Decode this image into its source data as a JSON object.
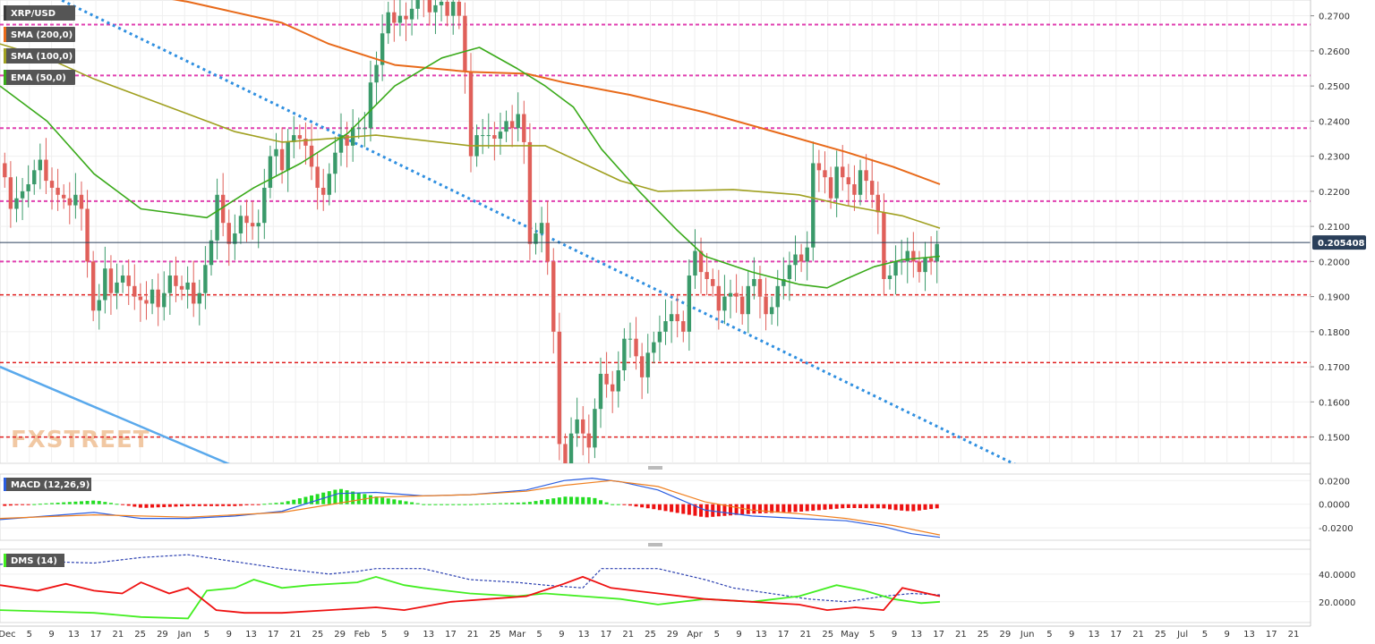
{
  "chart_data": [
    {
      "type": "candlestick",
      "title": "XRP/USD",
      "indicators": [
        {
          "name": "SMA (200,0)",
          "color": "#e86a1a"
        },
        {
          "name": "SMA (100,0)",
          "color": "#a0a020"
        },
        {
          "name": "EMA (50,0)",
          "color": "#3aaa1a"
        }
      ],
      "last_price_label": "0.205408",
      "ylim": [
        0.1425,
        0.2745
      ],
      "yticks": [
        "0.2700",
        "0.2600",
        "0.2500",
        "0.2400",
        "0.2300",
        "0.2200",
        "0.2100",
        "0.2000",
        "0.1900",
        "0.1800",
        "0.1700",
        "0.1600",
        "0.1500"
      ],
      "pink_levels": [
        0.2675,
        0.253,
        0.238,
        0.2172,
        0.2
      ],
      "red_levels": [
        0.1905,
        0.1712,
        0.15
      ],
      "watermark": "FXSTREET",
      "close_series": [
        0.224,
        0.215,
        0.218,
        0.22,
        0.222,
        0.226,
        0.229,
        0.223,
        0.221,
        0.219,
        0.218,
        0.216,
        0.219,
        0.215,
        0.2,
        0.186,
        0.189,
        0.198,
        0.191,
        0.194,
        0.196,
        0.193,
        0.19,
        0.189,
        0.188,
        0.192,
        0.187,
        0.191,
        0.196,
        0.193,
        0.192,
        0.194,
        0.188,
        0.191,
        0.199,
        0.206,
        0.219,
        0.211,
        0.205,
        0.208,
        0.213,
        0.211,
        0.21,
        0.211,
        0.221,
        0.23,
        0.232,
        0.226,
        0.234,
        0.236,
        0.235,
        0.233,
        0.227,
        0.221,
        0.219,
        0.225,
        0.231,
        0.236,
        0.233,
        0.238,
        0.238,
        0.238,
        0.251,
        0.256,
        0.265,
        0.271,
        0.268,
        0.27,
        0.269,
        0.272,
        0.276,
        0.275,
        0.271,
        0.273,
        0.274,
        0.27,
        0.274,
        0.27,
        0.254,
        0.23,
        0.236,
        0.236,
        0.236,
        0.235,
        0.237,
        0.24,
        0.238,
        0.242,
        0.234,
        0.205,
        0.208,
        0.211,
        0.2,
        0.18,
        0.148,
        0.14,
        0.151,
        0.155,
        0.151,
        0.147,
        0.158,
        0.168,
        0.165,
        0.163,
        0.169,
        0.178,
        0.178,
        0.173,
        0.167,
        0.174,
        0.177,
        0.18,
        0.183,
        0.185,
        0.183,
        0.18,
        0.196,
        0.203,
        0.197,
        0.195,
        0.193,
        0.186,
        0.19,
        0.191,
        0.19,
        0.185,
        0.193,
        0.195,
        0.19,
        0.185,
        0.187,
        0.193,
        0.195,
        0.199,
        0.202,
        0.2,
        0.204,
        0.228,
        0.226,
        0.224,
        0.218,
        0.227,
        0.224,
        0.222,
        0.219,
        0.226,
        0.223,
        0.219,
        0.214,
        0.195,
        0.196,
        0.2,
        0.2,
        0.203,
        0.2,
        0.197,
        0.201,
        0.2,
        0.205
      ],
      "sma200": [
        [
          0.1,
          0.2785
        ],
        [
          0.2,
          0.274
        ],
        [
          0.3,
          0.268
        ],
        [
          0.35,
          0.262
        ],
        [
          0.42,
          0.256
        ],
        [
          0.5,
          0.254
        ],
        [
          0.56,
          0.2535
        ],
        [
          0.6,
          0.251
        ],
        [
          0.67,
          0.2475
        ],
        [
          0.75,
          0.2425
        ],
        [
          0.83,
          0.2365
        ],
        [
          0.9,
          0.2312
        ],
        [
          0.95,
          0.227
        ],
        [
          1.0,
          0.222
        ]
      ],
      "sma100": [
        [
          0.0,
          0.262
        ],
        [
          0.05,
          0.258
        ],
        [
          0.1,
          0.252
        ],
        [
          0.15,
          0.247
        ],
        [
          0.2,
          0.242
        ],
        [
          0.25,
          0.237
        ],
        [
          0.3,
          0.234
        ],
        [
          0.4,
          0.236
        ],
        [
          0.5,
          0.233
        ],
        [
          0.58,
          0.233
        ],
        [
          0.62,
          0.228
        ],
        [
          0.66,
          0.223
        ],
        [
          0.7,
          0.22
        ],
        [
          0.78,
          0.2205
        ],
        [
          0.85,
          0.219
        ],
        [
          0.9,
          0.216
        ],
        [
          0.96,
          0.213
        ],
        [
          1.0,
          0.2095
        ]
      ],
      "ema50": [
        [
          0.0,
          0.25
        ],
        [
          0.05,
          0.24
        ],
        [
          0.1,
          0.225
        ],
        [
          0.15,
          0.215
        ],
        [
          0.22,
          0.2125
        ],
        [
          0.27,
          0.221
        ],
        [
          0.32,
          0.228
        ],
        [
          0.37,
          0.2365
        ],
        [
          0.42,
          0.25
        ],
        [
          0.47,
          0.258
        ],
        [
          0.51,
          0.261
        ],
        [
          0.55,
          0.255
        ],
        [
          0.58,
          0.25
        ],
        [
          0.61,
          0.244
        ],
        [
          0.64,
          0.232
        ],
        [
          0.68,
          0.22
        ],
        [
          0.72,
          0.209
        ],
        [
          0.75,
          0.2015
        ],
        [
          0.8,
          0.197
        ],
        [
          0.85,
          0.1935
        ],
        [
          0.88,
          0.1925
        ],
        [
          0.9,
          0.195
        ],
        [
          0.93,
          0.1985
        ],
        [
          0.96,
          0.2005
        ],
        [
          1.0,
          0.2015
        ]
      ],
      "trend_dotted": [
        [
          0.0,
          0.283
        ],
        [
          1.0,
          0.134
        ]
      ],
      "trend_solid": [
        [
          0.0,
          0.17
        ],
        [
          1.0,
          0.118
        ]
      ],
      "xlabels": [
        "Dec",
        "5",
        "9",
        "13",
        "17",
        "21",
        "25",
        "29",
        "Jan",
        "5",
        "9",
        "13",
        "17",
        "21",
        "25",
        "29",
        "Feb",
        "5",
        "9",
        "13",
        "17",
        "21",
        "25",
        "Mar",
        "5",
        "9",
        "13",
        "17",
        "21",
        "25",
        "29",
        "Apr",
        "5",
        "9",
        "13",
        "17",
        "21",
        "25",
        "May",
        "5",
        "9",
        "13",
        "17",
        "21",
        "25",
        "29",
        "Jun",
        "5",
        "9",
        "13",
        "17",
        "21",
        "25",
        "Jul",
        "5",
        "9",
        "13",
        "17",
        "21"
      ]
    },
    {
      "type": "macd",
      "label": "MACD (12,26,9)",
      "yticks": [
        "0.0200",
        "0.0000",
        "-0.0200"
      ],
      "ylim": [
        -0.0305,
        0.0255
      ],
      "macd": [
        [
          0.0,
          -0.013
        ],
        [
          0.05,
          -0.01
        ],
        [
          0.1,
          -0.007
        ],
        [
          0.15,
          -0.012
        ],
        [
          0.2,
          -0.012
        ],
        [
          0.25,
          -0.01
        ],
        [
          0.3,
          -0.006
        ],
        [
          0.36,
          0.009
        ],
        [
          0.4,
          0.01
        ],
        [
          0.45,
          0.007
        ],
        [
          0.5,
          0.008
        ],
        [
          0.56,
          0.012
        ],
        [
          0.6,
          0.02
        ],
        [
          0.63,
          0.022
        ],
        [
          0.66,
          0.019
        ],
        [
          0.7,
          0.012
        ],
        [
          0.75,
          -0.005
        ],
        [
          0.8,
          -0.01
        ],
        [
          0.85,
          -0.012
        ],
        [
          0.9,
          -0.014
        ],
        [
          0.94,
          -0.019
        ],
        [
          0.97,
          -0.025
        ],
        [
          1.0,
          -0.028
        ]
      ],
      "signal": [
        [
          0.0,
          -0.012
        ],
        [
          0.1,
          -0.009
        ],
        [
          0.2,
          -0.011
        ],
        [
          0.3,
          -0.007
        ],
        [
          0.4,
          0.006
        ],
        [
          0.5,
          0.008
        ],
        [
          0.56,
          0.011
        ],
        [
          0.6,
          0.016
        ],
        [
          0.65,
          0.02
        ],
        [
          0.7,
          0.015
        ],
        [
          0.75,
          0.002
        ],
        [
          0.8,
          -0.005
        ],
        [
          0.85,
          -0.008
        ],
        [
          0.9,
          -0.012
        ],
        [
          0.95,
          -0.018
        ],
        [
          1.0,
          -0.026
        ]
      ],
      "hist_note": "green above zero, red below"
    },
    {
      "type": "dms",
      "label": "DMS (14)",
      "yticks": [
        "40.0000",
        "20.0000"
      ],
      "ylim": [
        5,
        58
      ]
    }
  ]
}
